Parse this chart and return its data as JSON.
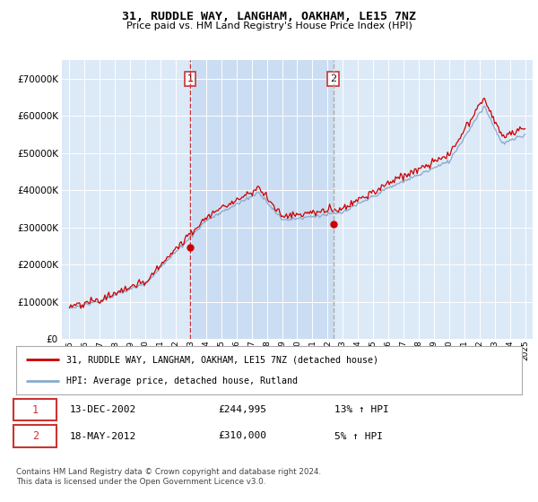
{
  "title": "31, RUDDLE WAY, LANGHAM, OAKHAM, LE15 7NZ",
  "subtitle": "Price paid vs. HM Land Registry's House Price Index (HPI)",
  "legend_line1": "31, RUDDLE WAY, LANGHAM, OAKHAM, LE15 7NZ (detached house)",
  "legend_line2": "HPI: Average price, detached house, Rutland",
  "footer1": "Contains HM Land Registry data © Crown copyright and database right 2024.",
  "footer2": "This data is licensed under the Open Government Licence v3.0.",
  "transaction1_date": "13-DEC-2002",
  "transaction1_price": "£244,995",
  "transaction1_hpi": "13% ↑ HPI",
  "transaction2_date": "18-MAY-2012",
  "transaction2_price": "£310,000",
  "transaction2_hpi": "5% ↑ HPI",
  "sale1_year": 2002.95,
  "sale1_price": 244995,
  "sale2_year": 2012.38,
  "sale2_price": 310000,
  "ylim_max": 750000,
  "ylim_min": 0,
  "year_start": 1995,
  "year_end": 2025,
  "chart_bg": "#dce9f7",
  "line_color_red": "#cc0000",
  "line_color_blue": "#88aacc",
  "dashed_line1_color": "#cc3333",
  "dashed_line2_color": "#aaaaaa",
  "grid_color": "#ffffff",
  "shade_color": "#c5d8f0"
}
